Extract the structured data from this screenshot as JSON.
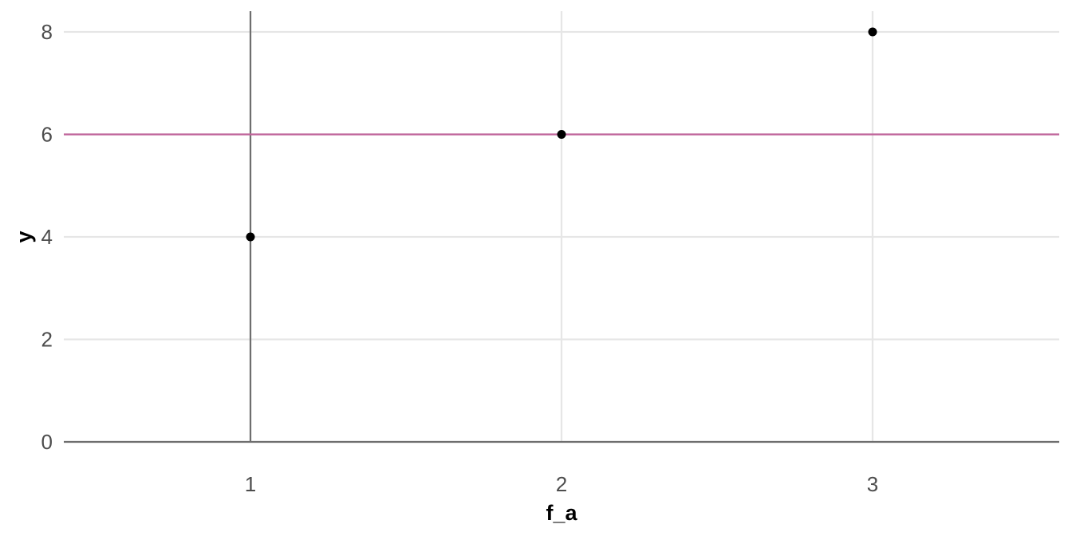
{
  "chart_data": {
    "type": "scatter",
    "title": "",
    "xlabel": "f_a",
    "ylabel": "y",
    "x": [
      1,
      2,
      3
    ],
    "y": [
      4,
      6,
      8
    ],
    "xlim": [
      0.4,
      3.6
    ],
    "ylim": [
      0,
      8.4
    ],
    "x_ticks": [
      "1",
      "2",
      "3"
    ],
    "y_ticks": [
      "0",
      "2",
      "4",
      "6",
      "8"
    ],
    "hline": 6,
    "vline": 1,
    "grid": true,
    "legend": "none",
    "colors": {
      "points": "#000000",
      "hline": "#c0649a",
      "reference_lines": "#6e6e6e",
      "grid": "#e6e6e6",
      "tick_text": "#4d4d4d"
    }
  }
}
